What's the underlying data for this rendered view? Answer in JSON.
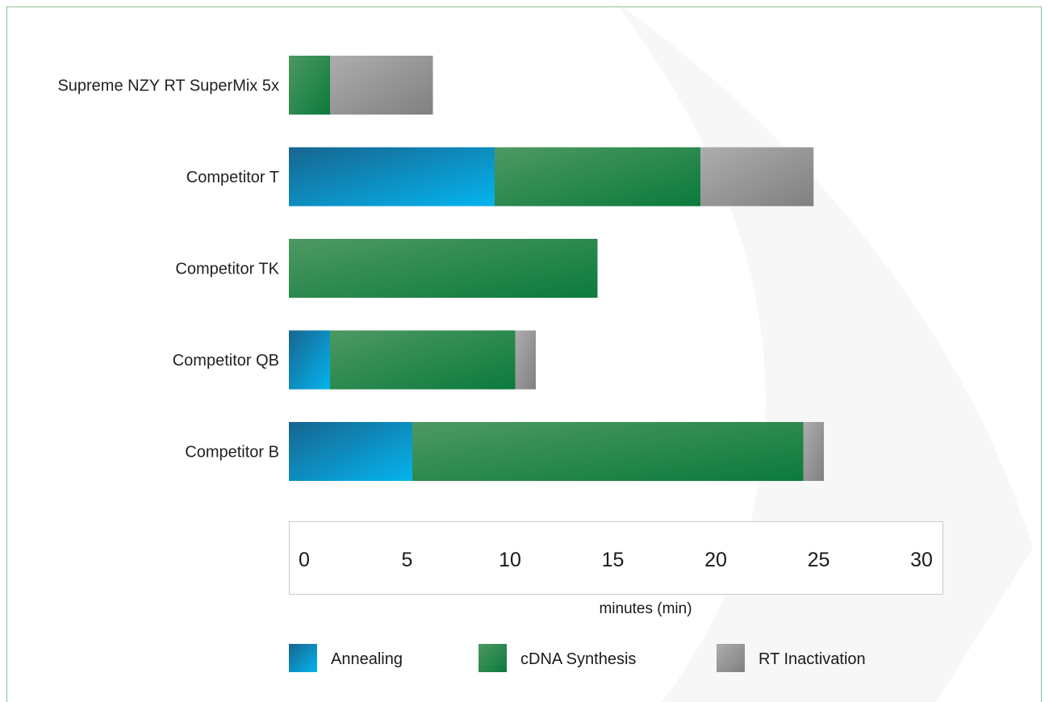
{
  "chart_data": {
    "type": "bar",
    "orientation": "horizontal",
    "stacked": true,
    "title": "",
    "xlabel": "minutes (min)",
    "ylabel": "",
    "xlim": [
      0,
      30
    ],
    "x_ticks": [
      "0",
      "5",
      "10",
      "15",
      "20",
      "25",
      "30"
    ],
    "categories": [
      "Supreme NZY RT SuperMix 5x",
      "Competitor T",
      "Competitor TK",
      "Competitor QB",
      "Competitor B"
    ],
    "series": [
      {
        "name": "Annealing",
        "values": [
          0,
          10,
          0,
          2,
          6
        ],
        "color": "#0a98d0"
      },
      {
        "name": "cDNA Synthesis",
        "values": [
          2,
          10,
          15,
          9,
          19
        ],
        "color": "#1e8a48"
      },
      {
        "name": "RT Inactivation",
        "values": [
          5,
          5.5,
          0,
          1,
          1
        ],
        "color": "#9a9a9a"
      }
    ],
    "legend_position": "bottom",
    "grid": false
  }
}
